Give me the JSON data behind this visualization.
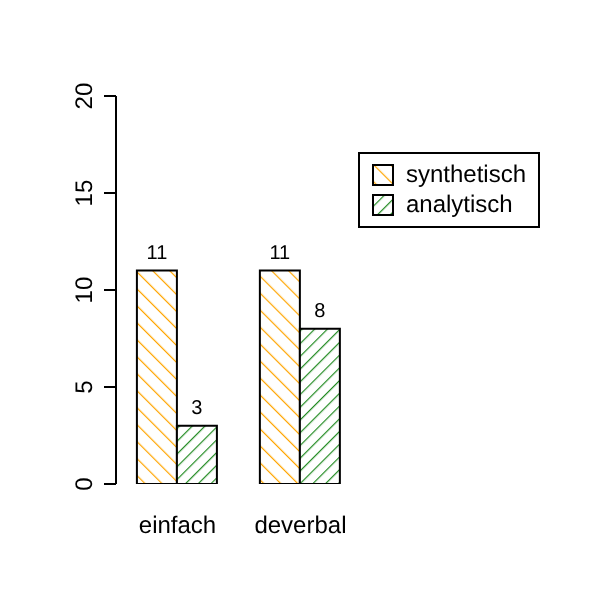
{
  "chart_data": {
    "type": "bar",
    "categories": [
      "einfach",
      "deverbal"
    ],
    "series": [
      {
        "name": "synthetisch",
        "color": "#ffa500",
        "values": [
          11,
          11
        ]
      },
      {
        "name": "analytisch",
        "color": "#228b22",
        "values": [
          3,
          8
        ]
      }
    ],
    "ylim": [
      0,
      20
    ],
    "yticks": [
      0,
      5,
      10,
      15,
      20
    ],
    "grid": false,
    "legend": "top right",
    "data_labels": true
  }
}
